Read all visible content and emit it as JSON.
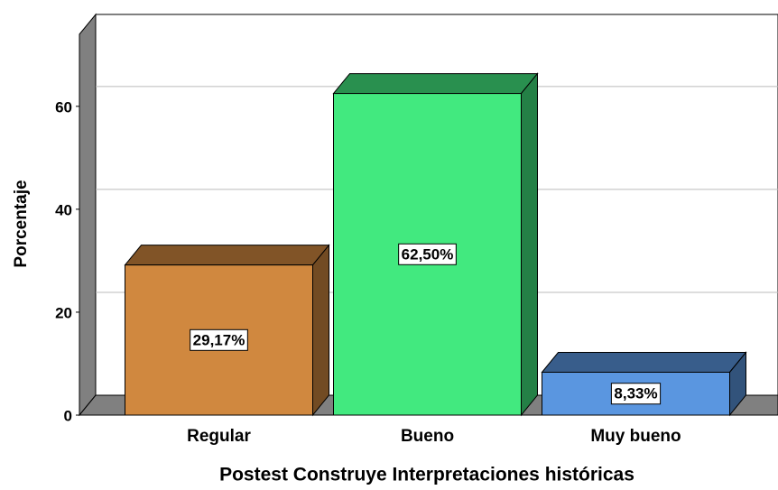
{
  "chart_data": {
    "type": "bar3d",
    "x_label": "Postest Construye Interpretaciones históricas",
    "y_label": "Porcentaje",
    "categories": [
      "Regular",
      "Bueno",
      "Muy bueno"
    ],
    "values": [
      29.17,
      62.5,
      8.33
    ],
    "value_labels": [
      "29,17%",
      "62,50%",
      "8,33%"
    ],
    "colors": [
      "#d0883f",
      "#42e97f",
      "#5a96e0"
    ],
    "ylim": [
      0,
      74
    ],
    "yticks": [
      0,
      20,
      40,
      60
    ],
    "grid": true
  }
}
